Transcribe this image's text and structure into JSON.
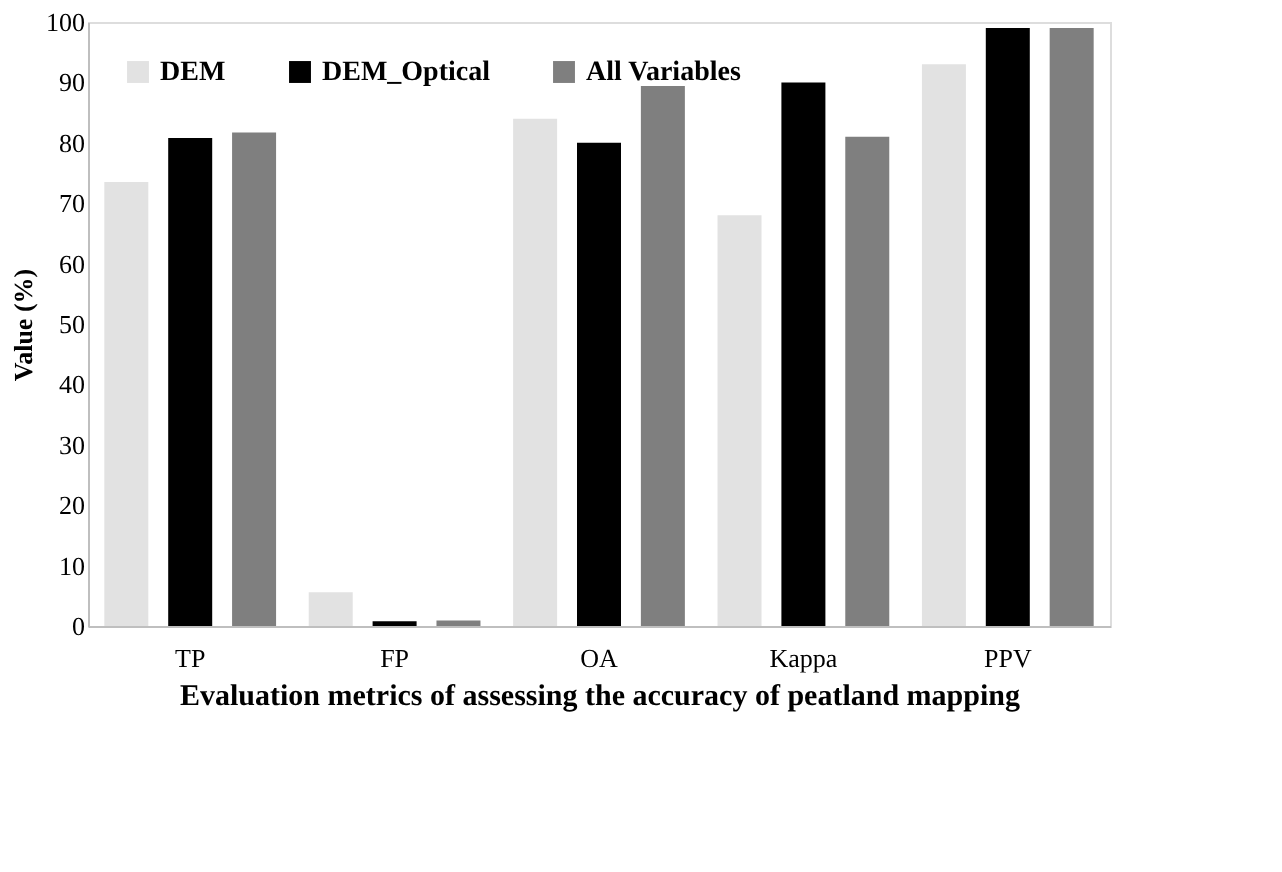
{
  "chart_data": {
    "type": "bar",
    "categories": [
      "TP",
      "FP",
      "OA",
      "Kappa",
      "PPV"
    ],
    "series": [
      {
        "name": "DEM",
        "color": "#e2e2e2",
        "values": [
          73.5,
          5.6,
          84,
          68,
          93
        ]
      },
      {
        "name": "DEM_Optical",
        "color": "#000000",
        "values": [
          80.8,
          0.8,
          80,
          90,
          99
        ]
      },
      {
        "name": "All Variables",
        "color": "#7f7f7f",
        "values": [
          81.7,
          0.9,
          90.5,
          81,
          99
        ]
      }
    ],
    "xlabel": "Evaluation metrics of assessing the accuracy of peatland mapping",
    "ylabel": "Value (%)",
    "ylim": [
      0,
      100
    ],
    "yticks": [
      0,
      10,
      20,
      30,
      40,
      50,
      60,
      70,
      80,
      90,
      100
    ],
    "grid": false,
    "legend": "top left"
  }
}
